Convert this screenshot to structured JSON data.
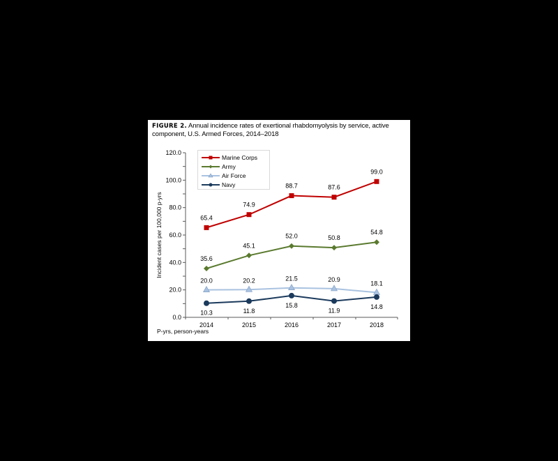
{
  "figure": {
    "label": "FIGURE 2.",
    "caption": " Annual incidence rates of exertional rhabdomyolysis by service, active component, U.S. Armed Forces, 2014–2018",
    "footnote": "P-yrs, person-years"
  },
  "chart_data": {
    "type": "line",
    "title": "Annual incidence rates of exertional rhabdomyolysis by service, active component, U.S. Armed Forces, 2014–2018",
    "xlabel": "",
    "ylabel": "Incident cases per 100,000 p-yrs",
    "categories": [
      "2014",
      "2015",
      "2016",
      "2017",
      "2018"
    ],
    "ylim": [
      0,
      120
    ],
    "yticks": [
      "0.0",
      "20.0",
      "40.0",
      "60.0",
      "80.0",
      "100.0",
      "120.0"
    ],
    "grid": false,
    "legend_position": "top-left inside",
    "series": [
      {
        "name": "Marine Corps",
        "color": "#c00000",
        "marker": "square",
        "values": [
          65.4,
          74.9,
          88.7,
          87.6,
          99.0
        ],
        "labels": [
          "65.4",
          "74.9",
          "88.7",
          "87.6",
          "99.0"
        ]
      },
      {
        "name": "Army",
        "color": "#5a7a2e",
        "marker": "diamond",
        "values": [
          35.6,
          45.1,
          52.0,
          50.8,
          54.8
        ],
        "labels": [
          "35.6",
          "45.1",
          "52.0",
          "50.8",
          "54.8"
        ]
      },
      {
        "name": "Air Force",
        "color": "#a9c2e0",
        "marker": "triangle",
        "values": [
          20.0,
          20.2,
          21.5,
          20.9,
          18.1
        ],
        "labels": [
          "20.0",
          "20.2",
          "21.5",
          "20.9",
          "18.1"
        ]
      },
      {
        "name": "Navy",
        "color": "#1b3a5c",
        "marker": "circle",
        "values": [
          10.3,
          11.8,
          15.8,
          11.9,
          14.8
        ],
        "labels": [
          "10.3",
          "11.8",
          "15.8",
          "11.9",
          "14.8"
        ]
      }
    ]
  }
}
